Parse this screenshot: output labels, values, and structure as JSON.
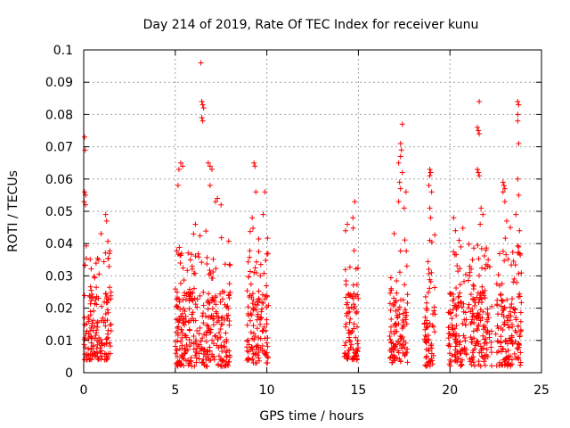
{
  "chart_data": {
    "type": "scatter",
    "title": "Day 214 of 2019, Rate Of TEC Index for receiver kunu",
    "xlabel": "GPS time / hours",
    "ylabel": "ROTI / TECUs",
    "xlim": [
      0,
      25
    ],
    "ylim": [
      0,
      0.1
    ],
    "xticks": [
      "0",
      "5",
      "10",
      "15",
      "20",
      "25"
    ],
    "yticks": [
      "0",
      "0.01",
      "0.02",
      "0.03",
      "0.04",
      "0.05",
      "0.06",
      "0.07",
      "0.08",
      "0.09",
      "0.1"
    ],
    "grid": true,
    "marker": "+",
    "color": "#ff0000",
    "clusters": [
      {
        "x_range": [
          0.0,
          1.5
        ],
        "y_core": [
          0.004,
          0.025
        ],
        "y_peak": 0.073
      },
      {
        "x_range": [
          5.0,
          8.0
        ],
        "y_core": [
          0.002,
          0.025
        ],
        "y_peak": 0.096
      },
      {
        "x_range": [
          8.9,
          10.1
        ],
        "y_core": [
          0.003,
          0.025
        ],
        "y_peak": 0.065
      },
      {
        "x_range": [
          14.2,
          15.0
        ],
        "y_core": [
          0.004,
          0.025
        ],
        "y_peak": 0.053
      },
      {
        "x_range": [
          16.7,
          17.7
        ],
        "y_core": [
          0.003,
          0.025
        ],
        "y_peak": 0.077
      },
      {
        "x_range": [
          18.6,
          19.2
        ],
        "y_core": [
          0.002,
          0.022
        ],
        "y_peak": 0.063
      },
      {
        "x_range": [
          19.9,
          20.9
        ],
        "y_core": [
          0.002,
          0.025
        ],
        "y_peak": 0.048
      },
      {
        "x_range": [
          21.0,
          22.3
        ],
        "y_core": [
          0.002,
          0.025
        ],
        "y_peak": 0.084
      },
      {
        "x_range": [
          22.5,
          23.9
        ],
        "y_core": [
          0.002,
          0.025
        ],
        "y_peak": 0.084
      }
    ],
    "outliers": [
      [
        0.05,
        0.073
      ],
      [
        0.08,
        0.069
      ],
      [
        0.05,
        0.056
      ],
      [
        0.1,
        0.055
      ],
      [
        0.02,
        0.053
      ],
      [
        0.1,
        0.052
      ],
      [
        1.2,
        0.049
      ],
      [
        1.25,
        0.047
      ],
      [
        6.4,
        0.096
      ],
      [
        6.45,
        0.084
      ],
      [
        6.5,
        0.083
      ],
      [
        6.55,
        0.082
      ],
      [
        6.45,
        0.079
      ],
      [
        6.5,
        0.078
      ],
      [
        5.3,
        0.065
      ],
      [
        5.4,
        0.064
      ],
      [
        5.2,
        0.063
      ],
      [
        5.15,
        0.058
      ],
      [
        6.8,
        0.065
      ],
      [
        6.9,
        0.064
      ],
      [
        7.0,
        0.063
      ],
      [
        6.9,
        0.058
      ],
      [
        7.3,
        0.054
      ],
      [
        7.2,
        0.053
      ],
      [
        7.5,
        0.052
      ],
      [
        6.1,
        0.046
      ],
      [
        6.0,
        0.043
      ],
      [
        9.3,
        0.065
      ],
      [
        9.35,
        0.064
      ],
      [
        9.4,
        0.056
      ],
      [
        9.9,
        0.056
      ],
      [
        9.8,
        0.049
      ],
      [
        9.2,
        0.048
      ],
      [
        14.8,
        0.053
      ],
      [
        14.7,
        0.048
      ],
      [
        14.4,
        0.046
      ],
      [
        14.3,
        0.044
      ],
      [
        17.4,
        0.077
      ],
      [
        17.3,
        0.071
      ],
      [
        17.35,
        0.069
      ],
      [
        17.3,
        0.067
      ],
      [
        17.2,
        0.065
      ],
      [
        17.4,
        0.062
      ],
      [
        17.25,
        0.059
      ],
      [
        17.3,
        0.057
      ],
      [
        17.6,
        0.056
      ],
      [
        17.2,
        0.053
      ],
      [
        17.5,
        0.051
      ],
      [
        18.9,
        0.063
      ],
      [
        18.95,
        0.062
      ],
      [
        18.9,
        0.061
      ],
      [
        18.85,
        0.058
      ],
      [
        19.0,
        0.056
      ],
      [
        18.9,
        0.051
      ],
      [
        18.95,
        0.048
      ],
      [
        18.9,
        0.041
      ],
      [
        20.2,
        0.048
      ],
      [
        20.3,
        0.044
      ],
      [
        20.5,
        0.041
      ],
      [
        20.6,
        0.039
      ],
      [
        21.6,
        0.084
      ],
      [
        21.5,
        0.076
      ],
      [
        21.55,
        0.075
      ],
      [
        21.6,
        0.074
      ],
      [
        21.5,
        0.063
      ],
      [
        21.55,
        0.062
      ],
      [
        21.6,
        0.061
      ],
      [
        21.7,
        0.051
      ],
      [
        21.8,
        0.049
      ],
      [
        21.65,
        0.046
      ],
      [
        23.7,
        0.084
      ],
      [
        23.75,
        0.083
      ],
      [
        23.7,
        0.08
      ],
      [
        23.7,
        0.078
      ],
      [
        23.75,
        0.071
      ],
      [
        22.9,
        0.059
      ],
      [
        22.95,
        0.058
      ],
      [
        23.0,
        0.057
      ],
      [
        22.9,
        0.056
      ],
      [
        23.0,
        0.053
      ],
      [
        23.7,
        0.06
      ],
      [
        23.75,
        0.055
      ],
      [
        23.1,
        0.047
      ],
      [
        23.3,
        0.045
      ],
      [
        23.6,
        0.049
      ],
      [
        23.8,
        0.044
      ]
    ]
  }
}
